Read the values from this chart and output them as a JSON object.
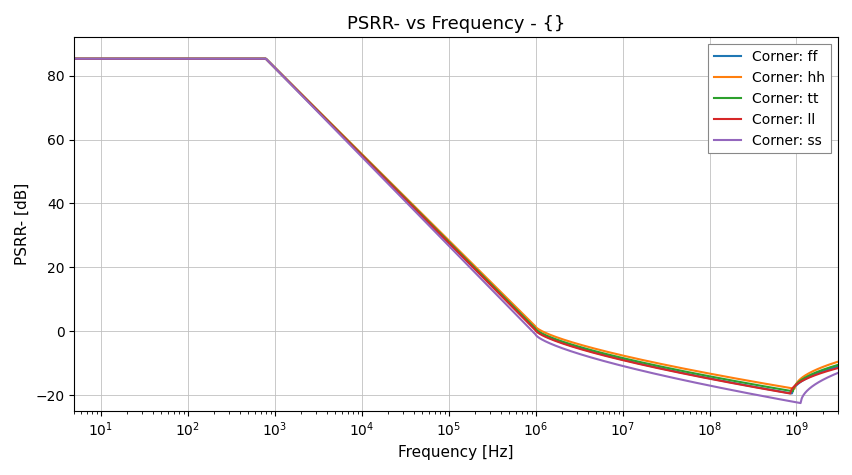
{
  "title": "PSRR- vs Frequency - {}",
  "xlabel": "Frequency [Hz]",
  "ylabel": "PSRR- [dB]",
  "xmin": 5.0,
  "xmax": 3000000000.0,
  "ymin": -25,
  "ymax": 92,
  "yticks": [
    -20,
    0,
    20,
    40,
    60,
    80
  ],
  "series": [
    {
      "label": "Corner: ff",
      "color": "#1f77b4",
      "flat": 85.3,
      "f_break": 2.9,
      "f_mid": 6.0,
      "f_dip": 8.95,
      "f_end_log": 9.48,
      "mid_val": 0.5,
      "min_val": -19.5,
      "end_val": -11.0
    },
    {
      "label": "Corner: hh",
      "color": "#ff7f0e",
      "flat": 85.3,
      "f_break": 2.9,
      "f_mid": 6.0,
      "f_dip": 8.98,
      "f_end_log": 9.48,
      "mid_val": 1.5,
      "min_val": -18.0,
      "end_val": -9.5
    },
    {
      "label": "Corner: tt",
      "color": "#2ca02c",
      "flat": 85.3,
      "f_break": 2.9,
      "f_mid": 6.0,
      "f_dip": 8.96,
      "f_end_log": 9.48,
      "mid_val": 0.8,
      "min_val": -18.8,
      "end_val": -10.5
    },
    {
      "label": "Corner: ll",
      "color": "#d62728",
      "flat": 85.3,
      "f_break": 2.9,
      "f_mid": 6.0,
      "f_dip": 8.93,
      "f_end_log": 9.48,
      "mid_val": 0.3,
      "min_val": -19.5,
      "end_val": -11.5
    },
    {
      "label": "Corner: ss",
      "color": "#9467bd",
      "flat": 85.3,
      "f_break": 2.9,
      "f_mid": 6.0,
      "f_dip": 9.05,
      "f_end_log": 9.48,
      "mid_val": -1.0,
      "min_val": -22.5,
      "end_val": -13.0
    }
  ],
  "title_fontsize": 13,
  "label_fontsize": 11,
  "tick_fontsize": 10,
  "legend_fontsize": 10,
  "figsize": [
    8.53,
    4.75
  ],
  "dpi": 100
}
